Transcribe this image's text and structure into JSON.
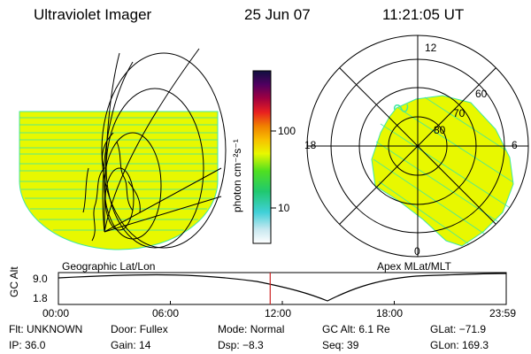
{
  "header": {
    "instrument": "Ultraviolet Imager",
    "date": "25 Jun 07",
    "time": "11:21:05 UT"
  },
  "colorbar": {
    "label": "photon cm⁻²s⁻¹",
    "ticks": [
      "100",
      "10"
    ]
  },
  "geo_panel": {
    "caption": "Geographic Lat/Lon"
  },
  "polar_panel": {
    "caption": "Apex MLat/MLT",
    "mlt_labels": [
      "12",
      "18",
      "6",
      "0"
    ],
    "lat_labels": [
      "60",
      "70",
      "80"
    ]
  },
  "timeline": {
    "ylabel": "GC Alt",
    "yticks": [
      "9.0",
      "1.8"
    ],
    "xticks": [
      "00:00",
      "06:00",
      "12:00",
      "18:00",
      "23:59"
    ],
    "current_marker_hour": 11.35
  },
  "status": {
    "row1": [
      {
        "label": "Flt:",
        "value": "UNKNOWN"
      },
      {
        "label": "Door:",
        "value": "Fullex"
      },
      {
        "label": "Mode:",
        "value": "Normal"
      },
      {
        "label": "GC Alt:",
        "value": "6.1 Re"
      },
      {
        "label": "GLat:",
        "value": "−71.9"
      }
    ],
    "row2": [
      {
        "label": "IP:",
        "value": "36.0"
      },
      {
        "label": "Gain:",
        "value": "14"
      },
      {
        "label": "Dsp:",
        "value": "−8.3"
      },
      {
        "label": "Seq:",
        "value": "39"
      },
      {
        "label": "GLon:",
        "value": "169.3"
      }
    ]
  },
  "colors": {
    "image_fill": "#e8f800",
    "stripe": "#40e8a0",
    "marker": "#cc2222"
  }
}
